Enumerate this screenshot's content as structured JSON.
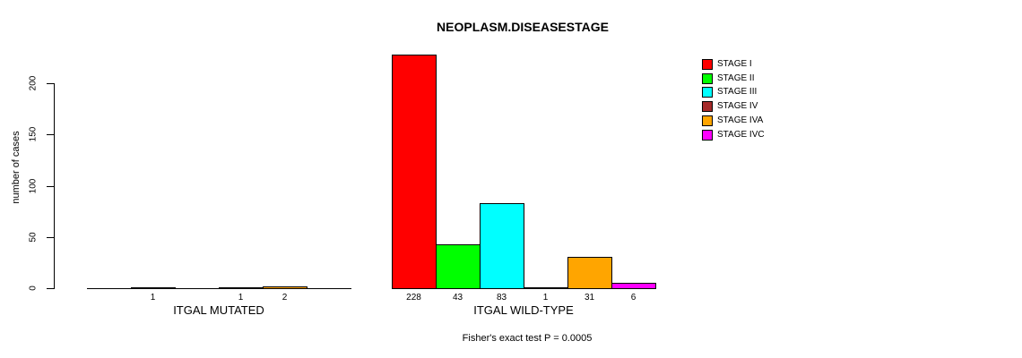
{
  "chart_data": {
    "type": "bar",
    "title": "NEOPLASM.DISEASESTAGE",
    "ylabel": "number of cases",
    "xlabel": "",
    "categories": [
      "ITGAL MUTATED",
      "ITGAL WILD-TYPE"
    ],
    "series": [
      {
        "name": "STAGE I",
        "color": "#FF0000",
        "values": [
          0,
          228
        ]
      },
      {
        "name": "STAGE II",
        "color": "#00FF00",
        "values": [
          1,
          43
        ]
      },
      {
        "name": "STAGE III",
        "color": "#00FFFF",
        "values": [
          0,
          83
        ]
      },
      {
        "name": "STAGE IV",
        "color": "#A52A2A",
        "values": [
          1,
          1
        ]
      },
      {
        "name": "STAGE IVA",
        "color": "#FFA500",
        "values": [
          2,
          31
        ]
      },
      {
        "name": "STAGE IVC",
        "color": "#FF00FF",
        "values": [
          0,
          6
        ]
      }
    ],
    "yticks": [
      0,
      50,
      100,
      150,
      200
    ],
    "ylim": [
      0,
      230
    ],
    "grid": false,
    "legend_position": "right",
    "bar_count_labels_visible_when_zero": false,
    "annotation": "Fisher's exact test P = 0.0005"
  }
}
